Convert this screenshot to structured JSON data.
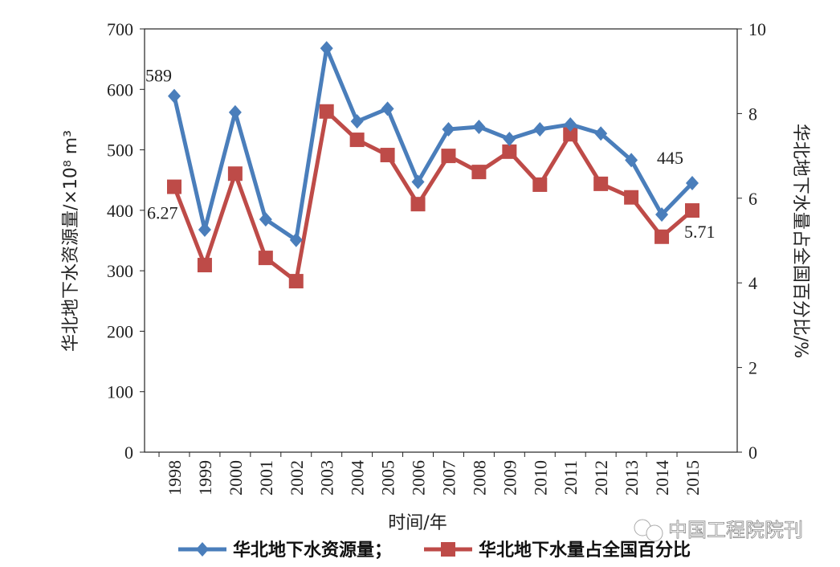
{
  "chart_data": {
    "type": "line",
    "categories": [
      "1998",
      "1999",
      "2000",
      "2001",
      "2002",
      "2003",
      "2004",
      "2005",
      "2006",
      "2007",
      "2008",
      "2009",
      "2010",
      "2011",
      "2012",
      "2013",
      "2014",
      "2015"
    ],
    "xlabel": "时间/年",
    "ylabel_left": "华北地下水资源量/×10⁸ m³",
    "ylabel_right": "华北地下水量占全国百分比/%",
    "ylim_left": [
      0,
      700
    ],
    "yticks_left": [
      0,
      100,
      200,
      300,
      400,
      500,
      600,
      700
    ],
    "ylim_right": [
      0,
      10
    ],
    "yticks_right": [
      0,
      2,
      4,
      6,
      8,
      10
    ],
    "grid": false,
    "legend_position": "bottom",
    "series": [
      {
        "name": "华北地下水资源量；",
        "axis": "left",
        "color": "#4a7ebb",
        "marker": "diamond",
        "values": [
          589,
          368,
          562,
          385,
          351,
          668,
          547,
          568,
          447,
          534,
          538,
          518,
          534,
          542,
          527,
          483,
          393,
          445
        ]
      },
      {
        "name": "华北地下水量占全国百分比",
        "axis": "right",
        "color": "#be4b48",
        "marker": "square",
        "values": [
          6.27,
          4.42,
          6.58,
          4.59,
          4.04,
          8.05,
          7.38,
          7.02,
          5.86,
          7.0,
          6.62,
          7.1,
          6.32,
          7.51,
          6.34,
          6.02,
          5.09,
          5.71
        ]
      }
    ],
    "annotations": [
      {
        "text": "589",
        "series": 0,
        "category": "1998"
      },
      {
        "text": "6.27",
        "series": 1,
        "category": "1998"
      },
      {
        "text": "445",
        "series": 0,
        "category": "2015"
      },
      {
        "text": "5.71",
        "series": 1,
        "category": "2015"
      }
    ]
  },
  "watermark": "中国工程院院刊"
}
